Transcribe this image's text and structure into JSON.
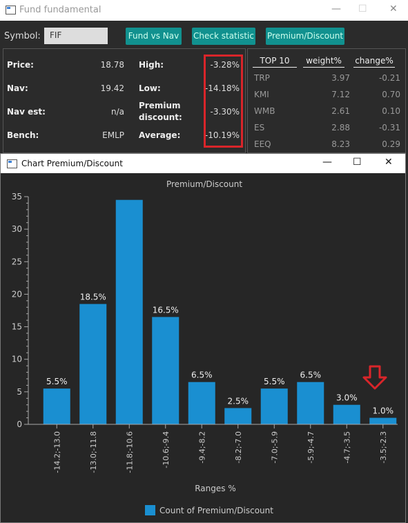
{
  "main_window": {
    "title": "Fund fundamental",
    "controls": [
      "—",
      "☐",
      "✕"
    ]
  },
  "toolbar": {
    "symbol_label": "Symbol:",
    "symbol_value": "FIF",
    "buttons": [
      "Fund vs Nav",
      "Check statistic",
      "Premium/Discount"
    ]
  },
  "stats": {
    "price_label": "Price:",
    "price_value": "18.78",
    "nav_label": "Nav:",
    "nav_value": "19.42",
    "nav_est_label": "Nav est:",
    "nav_est_value": "n/a",
    "bench_label": "Bench:",
    "bench_value": "EMLP",
    "high_label": "High:",
    "high_value": "-3.28%",
    "low_label": "Low:",
    "low_value": "-14.18%",
    "premium_label_1": "Premium",
    "premium_label_2": "discount:",
    "premium_value": "-3.30%",
    "average_label": "Average:",
    "average_value": "-10.19%"
  },
  "top10": {
    "headers": [
      "TOP 10",
      "weight%",
      "change%"
    ],
    "rows": [
      [
        "TRP",
        "3.97",
        "-0.21"
      ],
      [
        "KMI",
        "7.12",
        "0.70"
      ],
      [
        "WMB",
        "2.61",
        "0.10"
      ],
      [
        "ES",
        "2.88",
        "-0.31"
      ],
      [
        "EEQ",
        "8.23",
        "0.29"
      ]
    ]
  },
  "chart_window": {
    "title": "Chart Premium/Discount",
    "controls": [
      "—",
      "☐",
      "✕"
    ]
  },
  "colors": {
    "bar": "#1a8fd1",
    "accent_red": "#d9252a",
    "button": "#11918f"
  },
  "chart_data": {
    "type": "bar",
    "title": "Premium/Discount",
    "xlabel": "Ranges %",
    "ylabel": "",
    "ylim": [
      0,
      35
    ],
    "yticks": [
      "0",
      "5",
      "10",
      "15",
      "20",
      "25",
      "30",
      "35"
    ],
    "categories": [
      "-14.2;-13.0",
      "-13.0;-11.8",
      "-11.8;-10.6",
      "-10.6;-9.4",
      "-9.4;-8.2",
      "-8.2;-7.0",
      "-7.0;-5.9",
      "-5.9;-4.7",
      "-4.7;-3.5",
      "-3.5;-2.3"
    ],
    "values": [
      5.5,
      18.5,
      34.5,
      16.5,
      6.5,
      2.5,
      5.5,
      6.5,
      3.0,
      1.0
    ],
    "data_labels": [
      "5.5%",
      "18.5%",
      "",
      "16.5%",
      "6.5%",
      "2.5%",
      "5.5%",
      "6.5%",
      "3.0%",
      "1.0%"
    ],
    "legend": "Count of Premium/Discount",
    "legend_position": "bottom",
    "grid": false
  }
}
